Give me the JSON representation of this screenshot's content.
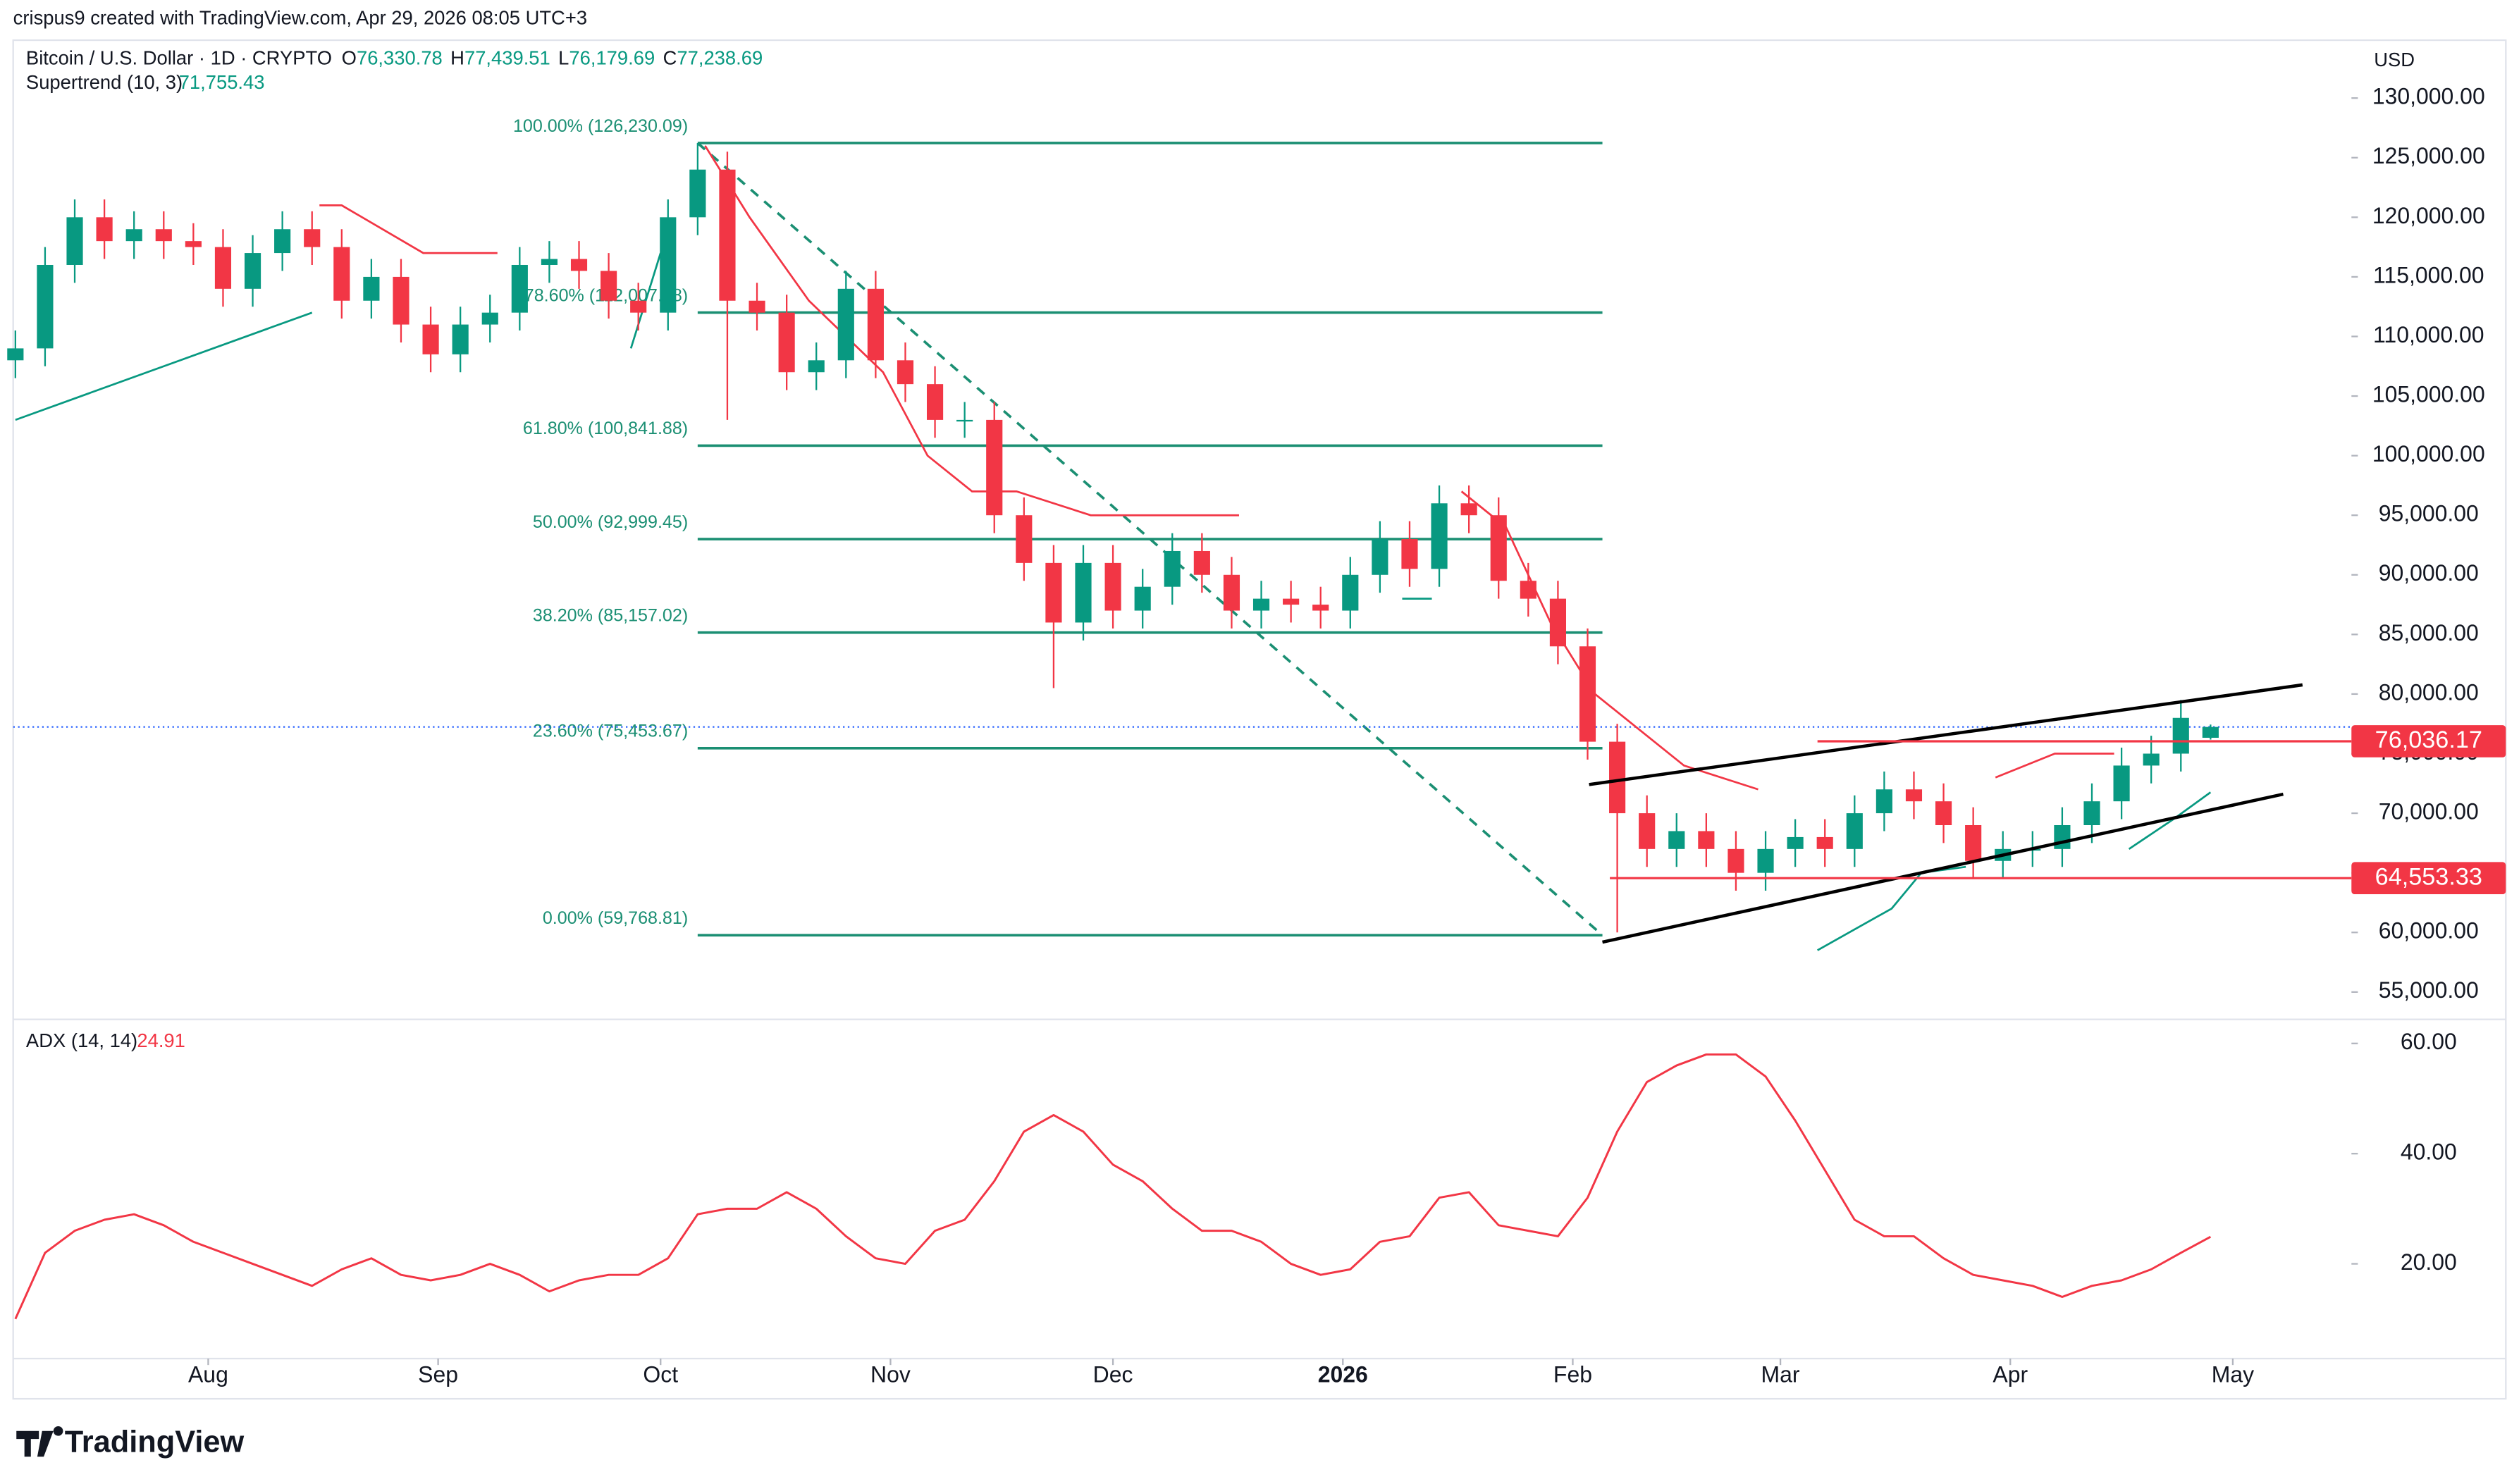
{
  "header": {
    "credit": "crispus9 created with TradingView.com, Apr 29, 2026 08:05 UTC+3",
    "symbol": "Bitcoin / U.S. Dollar · 1D · CRYPTO",
    "ohlc": [
      {
        "key": "O",
        "label": "76,330.78"
      },
      {
        "key": "H",
        "label": "77,439.51"
      },
      {
        "key": "L",
        "label": "76,179.69"
      },
      {
        "key": "C",
        "label": "77,238.69"
      }
    ],
    "supertrend_name": "Supertrend (10, 3)",
    "supertrend_value": "71,755.43",
    "currency": "USD",
    "logo": "TradingView"
  },
  "chart_data": [
    {
      "type": "candlestick",
      "up_color": "#089981",
      "down_color": "#f23645",
      "x": [
        5,
        9,
        13,
        17,
        21,
        25,
        29,
        33,
        37,
        41,
        45,
        49,
        53,
        57,
        61,
        65,
        69,
        73,
        77,
        81,
        85,
        89,
        93,
        97,
        101,
        105,
        109,
        113,
        117,
        121,
        125,
        129,
        133,
        137,
        141,
        145,
        149,
        153,
        157,
        161,
        165,
        169,
        173,
        177,
        181,
        185,
        189,
        193,
        197,
        201,
        205,
        209,
        213,
        217,
        221,
        225,
        229,
        233,
        237,
        241,
        245,
        249,
        253,
        257,
        261,
        265,
        269,
        273,
        277,
        281,
        285,
        289,
        293,
        297,
        301
      ],
      "open": [
        108000,
        109000,
        116000,
        120000,
        118000,
        119000,
        118000,
        117500,
        114000,
        117000,
        119000,
        117500,
        113000,
        115000,
        111000,
        108500,
        111000,
        112000,
        116000,
        116500,
        115500,
        113000,
        112000,
        120000,
        124000,
        113000,
        112000,
        107000,
        108000,
        114000,
        108000,
        106000,
        103000,
        103000,
        95000,
        91000,
        86000,
        91000,
        87000,
        89000,
        92000,
        90000,
        87000,
        88000,
        87500,
        87000,
        90000,
        93000,
        90500,
        96000,
        95000,
        89500,
        88000,
        84000,
        76000,
        70000,
        67000,
        68500,
        67000,
        65000,
        67000,
        68000,
        67000,
        70000,
        72000,
        71000,
        69000,
        66000,
        67000,
        67000,
        69000,
        71000,
        74000,
        75000,
        76330.78
      ],
      "high": [
        110500,
        117500,
        121500,
        121500,
        120500,
        120500,
        119500,
        119000,
        118500,
        120500,
        120500,
        119000,
        116500,
        116500,
        112500,
        112500,
        113500,
        117500,
        118000,
        118000,
        117000,
        114500,
        121500,
        126230.09,
        125500,
        114500,
        113500,
        109500,
        115500,
        115500,
        109500,
        107500,
        104500,
        104500,
        96500,
        92500,
        92500,
        92500,
        90500,
        93500,
        93500,
        91500,
        89500,
        89500,
        89000,
        91500,
        94500,
        94500,
        97500,
        97500,
        96500,
        91000,
        89500,
        85500,
        77500,
        71500,
        70000,
        70000,
        68500,
        68500,
        69500,
        69500,
        71500,
        73500,
        73500,
        72500,
        70500,
        68500,
        68500,
        70500,
        72500,
        75500,
        76500,
        79500,
        77439.51
      ],
      "low": [
        106500,
        107500,
        114500,
        116500,
        116500,
        116500,
        116000,
        112500,
        112500,
        115500,
        116000,
        111500,
        111500,
        109500,
        107000,
        107000,
        109500,
        110500,
        114500,
        114000,
        111500,
        110500,
        110500,
        118500,
        103000,
        110500,
        105500,
        105500,
        106500,
        106500,
        104500,
        101500,
        101500,
        93500,
        89500,
        80500,
        84500,
        85500,
        85500,
        87500,
        88500,
        85500,
        85500,
        86000,
        85500,
        85500,
        88500,
        89000,
        89000,
        93500,
        88000,
        86500,
        82500,
        74500,
        60000,
        65500,
        65500,
        65500,
        63500,
        63500,
        65500,
        65500,
        65500,
        68500,
        69500,
        67500,
        64500,
        64500,
        65500,
        65500,
        67500,
        69500,
        72500,
        73500,
        76179.69
      ],
      "close": [
        109000,
        116000,
        120000,
        118000,
        119000,
        118000,
        117500,
        114000,
        117000,
        119000,
        117500,
        113000,
        115000,
        111000,
        108500,
        111000,
        112000,
        116000,
        116500,
        115500,
        113000,
        112000,
        120000,
        124000,
        113000,
        112000,
        107000,
        108000,
        114000,
        108000,
        106000,
        103000,
        103000,
        95000,
        91000,
        86000,
        91000,
        87000,
        89000,
        92000,
        90000,
        87000,
        88000,
        87500,
        87000,
        90000,
        93000,
        90500,
        96000,
        95000,
        89500,
        88000,
        84000,
        76000,
        70000,
        67000,
        68500,
        67000,
        65000,
        67000,
        68000,
        67000,
        70000,
        72000,
        71000,
        69000,
        66000,
        67000,
        67000,
        69000,
        71000,
        74000,
        75000,
        78000,
        77238.69
      ],
      "supertrend": {
        "x": [
          5,
          45,
          46,
          49,
          60,
          64,
          70,
          88,
          92,
          98,
          104,
          112,
          122,
          128,
          134,
          140,
          150,
          170,
          192,
          196,
          200,
          206,
          212,
          218,
          224,
          230,
          240,
          248,
          258,
          262,
          268,
          272,
          280,
          288,
          290,
          296,
          301
        ],
        "series": [
          {
            "color": "#089981",
            "values": [
              103000,
              112000,
              null,
              null,
              null,
              null,
              null,
              109000,
              117000,
              null,
              null,
              null,
              null,
              null,
              null,
              null,
              null,
              null,
              88000,
              88000,
              null,
              null,
              null,
              null,
              null,
              null,
              null,
              58500,
              62000,
              65000,
              65500,
              null,
              null,
              null,
              67000,
              69500,
              71755.43
            ]
          },
          {
            "color": "#f23645",
            "values": [
              null,
              null,
              121000,
              121000,
              117000,
              117000,
              117000,
              null,
              null,
              126000,
              120000,
              113000,
              107000,
              100000,
              97000,
              97000,
              95000,
              95000,
              null,
              null,
              97000,
              94000,
              86000,
              80000,
              77000,
              74000,
              72000,
              null,
              null,
              null,
              null,
              73000,
              75000,
              75000,
              null,
              null,
              null
            ]
          }
        ]
      },
      "fib": {
        "color": "#1b8f73",
        "x_from": 97,
        "x_to": 219,
        "levels": [
          {
            "value": 126230.09,
            "label": "100.00% (126,230.09)"
          },
          {
            "value": 112007.38,
            "label": "78.60% (112,007.38)"
          },
          {
            "value": 100841.88,
            "label": "61.80% (100,841.88)"
          },
          {
            "value": 92999.45,
            "label": "50.00% (92,999.45)"
          },
          {
            "value": 85157.02,
            "label": "38.20% (85,157.02)"
          },
          {
            "value": 75453.67,
            "label": "23.60% (75,453.67)"
          },
          {
            "value": 59768.81,
            "label": "0.00% (59,768.81)"
          }
        ]
      },
      "diagonal": {
        "x": [
          97,
          219
        ],
        "values": [
          126230.09,
          59768.81
        ]
      },
      "trendlines": [
        {
          "x": [
            217.2,
            313.4
          ],
          "values": [
            72406,
            80768
          ]
        },
        {
          "x": [
            219,
            310.8
          ],
          "values": [
            59187,
            71597
          ]
        }
      ],
      "price_lines": [
        {
          "value": 76036.17,
          "label": "76,036.17",
          "from_x": 248
        },
        {
          "value": 64553.33,
          "label": "64,553.33",
          "from_x": 220
        }
      ],
      "last_price": 77238.69,
      "xlim": [
        4.7,
        320
      ],
      "xticks": [
        {
          "value": 31,
          "label": "Aug"
        },
        {
          "value": 62,
          "label": "Sep"
        },
        {
          "value": 92,
          "label": "Oct"
        },
        {
          "value": 123,
          "label": "Nov"
        },
        {
          "value": 153,
          "label": "Dec"
        },
        {
          "value": 184,
          "label": "2026"
        },
        {
          "value": 215,
          "label": "Feb"
        },
        {
          "value": 243,
          "label": "Mar"
        },
        {
          "value": 274,
          "label": "Apr"
        },
        {
          "value": 304,
          "label": "May"
        }
      ],
      "ylim": [
        52977,
        134856
      ],
      "yticks": [
        {
          "value": 55000,
          "label": "55,000.00"
        },
        {
          "value": 60000,
          "label": "60,000.00"
        },
        {
          "value": 65000,
          "label": "65,000.00"
        },
        {
          "value": 70000,
          "label": "70,000.00"
        },
        {
          "value": 75000,
          "label": "75,000.00"
        },
        {
          "value": 80000,
          "label": "80,000.00"
        },
        {
          "value": 85000,
          "label": "85,000.00"
        },
        {
          "value": 90000,
          "label": "90,000.00"
        },
        {
          "value": 95000,
          "label": "95,000.00"
        },
        {
          "value": 100000,
          "label": "100,000.00"
        },
        {
          "value": 105000,
          "label": "105,000.00"
        },
        {
          "value": 110000,
          "label": "110,000.00"
        },
        {
          "value": 115000,
          "label": "115,000.00"
        },
        {
          "value": 120000,
          "label": "120,000.00"
        },
        {
          "value": 125000,
          "label": "125,000.00"
        },
        {
          "value": 130000,
          "label": "130,000.00"
        }
      ]
    },
    {
      "type": "line",
      "title": "ADX (14, 14)",
      "value_label": "24.91",
      "color": "#f23645",
      "x": [
        5,
        9,
        13,
        17,
        21,
        25,
        29,
        33,
        37,
        41,
        45,
        49,
        53,
        57,
        61,
        65,
        69,
        73,
        77,
        81,
        85,
        89,
        93,
        97,
        101,
        105,
        109,
        113,
        117,
        121,
        125,
        129,
        133,
        137,
        141,
        145,
        149,
        153,
        157,
        161,
        165,
        169,
        173,
        177,
        181,
        185,
        189,
        193,
        197,
        201,
        205,
        209,
        213,
        217,
        221,
        225,
        229,
        233,
        237,
        241,
        245,
        249,
        253,
        257,
        261,
        265,
        269,
        273,
        277,
        281,
        285,
        289,
        293,
        297,
        301
      ],
      "values": [
        10,
        22,
        26,
        28,
        29,
        27,
        24,
        22,
        20,
        18,
        16,
        19,
        21,
        18,
        17,
        18,
        20,
        18,
        15,
        17,
        18,
        18,
        21,
        29,
        30,
        30,
        33,
        30,
        25,
        21,
        20,
        26,
        28,
        35,
        44,
        47,
        44,
        38,
        35,
        30,
        26,
        26,
        24,
        20,
        18,
        19,
        24,
        25,
        32,
        33,
        27,
        26,
        25,
        32,
        44,
        53,
        56,
        58,
        58,
        54,
        46,
        37,
        28,
        25,
        25,
        21,
        18,
        17,
        16,
        14,
        16,
        17,
        19,
        22,
        24.91
      ],
      "xlim": [
        4.7,
        320
      ],
      "ylim": [
        2.8,
        63.5
      ],
      "yticks": [
        {
          "value": 20,
          "label": "20.00"
        },
        {
          "value": 40,
          "label": "40.00"
        },
        {
          "value": 60,
          "label": "60.00"
        }
      ]
    }
  ]
}
